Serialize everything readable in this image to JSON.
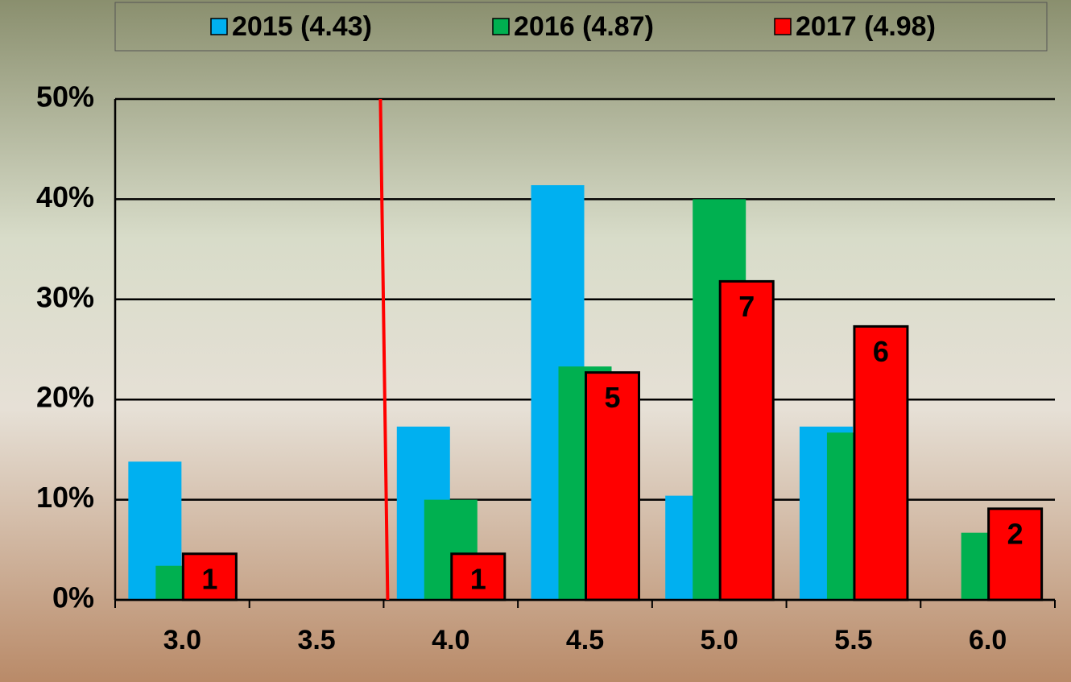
{
  "chart_data": {
    "type": "bar",
    "categories": [
      "3.0",
      "3.5",
      "4.0",
      "4.5",
      "5.0",
      "5.5",
      "6.0"
    ],
    "series": [
      {
        "name": "2015 (4.43)",
        "color": "#00b0f0",
        "values": [
          13.8,
          0,
          17.3,
          41.4,
          10.4,
          17.3,
          0
        ]
      },
      {
        "name": "2016 (4.87)",
        "color": "#00b050",
        "values": [
          3.4,
          0,
          10.0,
          23.3,
          40.0,
          16.7,
          6.7
        ]
      },
      {
        "name": "2017 (4.98)",
        "color": "#ff0000",
        "values": [
          4.6,
          0,
          4.6,
          22.7,
          31.8,
          27.3,
          9.1
        ],
        "counts": [
          1,
          null,
          1,
          5,
          7,
          6,
          2
        ]
      }
    ],
    "ylim": [
      0,
      50
    ],
    "yticks": [
      {
        "value": 0,
        "label": "0%"
      },
      {
        "value": 10,
        "label": "10%"
      },
      {
        "value": 20,
        "label": "20%"
      },
      {
        "value": 30,
        "label": "30%"
      },
      {
        "value": 40,
        "label": "40%"
      },
      {
        "value": 50,
        "label": "50%"
      }
    ],
    "grid": true,
    "vline": {
      "x": 3.75,
      "color": "#ff0000"
    }
  }
}
